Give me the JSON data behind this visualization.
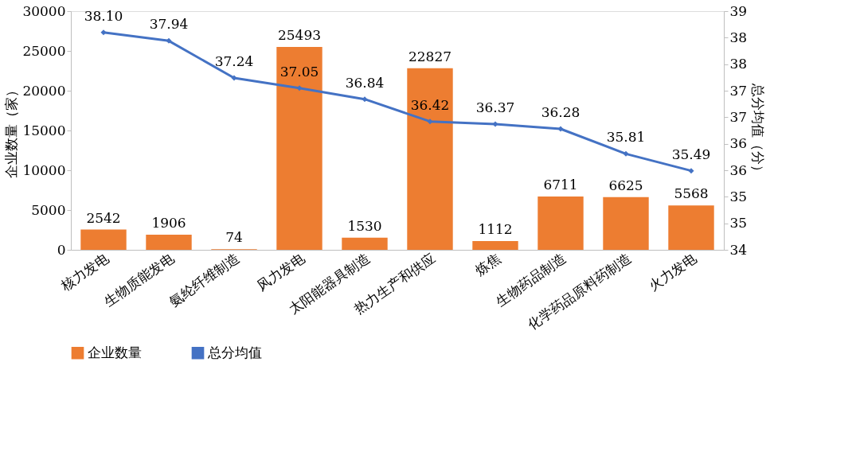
{
  "chart_data": {
    "type": "bar",
    "ylabel": "企业数量（家）",
    "y2label": "总分均值（分）",
    "categories": [
      "核力发电",
      "生物质能发电",
      "氨纶纤维制造",
      "风力发电",
      "太阳能器具制造",
      "热力生产和供应",
      "炼焦",
      "生物药品制造",
      "化学药品原料药制造",
      "火力发电"
    ],
    "series": [
      {
        "name": "企业数量",
        "color": "#ed7d31",
        "values": [
          2542,
          1906,
          74,
          25493,
          1530,
          22827,
          1112,
          6711,
          6625,
          5568
        ]
      },
      {
        "name": "总分均值",
        "type": "line",
        "axis": "y2",
        "color": "#4472c4",
        "marker": "diamond",
        "values": [
          38.1,
          37.94,
          37.24,
          37.05,
          36.84,
          36.42,
          36.37,
          36.28,
          35.81,
          35.49
        ],
        "value_labels": [
          "38.10",
          "37.94",
          "37.24",
          "37.05",
          "36.84",
          "36.42",
          "36.37",
          "36.28",
          "35.81",
          "35.49"
        ]
      }
    ],
    "ylim": [
      0,
      30000
    ],
    "yticks": [
      0,
      5000,
      10000,
      15000,
      20000,
      25000,
      30000
    ],
    "y2lim": [
      34,
      38.5
    ],
    "y2ticks": [
      {
        "value": 34,
        "label": "34"
      },
      {
        "value": 34.5,
        "label": "35"
      },
      {
        "value": 35,
        "label": "35"
      },
      {
        "value": 35.5,
        "label": "36"
      },
      {
        "value": 36,
        "label": "36"
      },
      {
        "value": 36.5,
        "label": "37"
      },
      {
        "value": 37,
        "label": "37"
      },
      {
        "value": 37.5,
        "label": "38"
      },
      {
        "value": 38,
        "label": "38"
      },
      {
        "value": 38.5,
        "label": "39"
      }
    ],
    "data_labels": true,
    "grid": false,
    "legend": "bottom"
  }
}
